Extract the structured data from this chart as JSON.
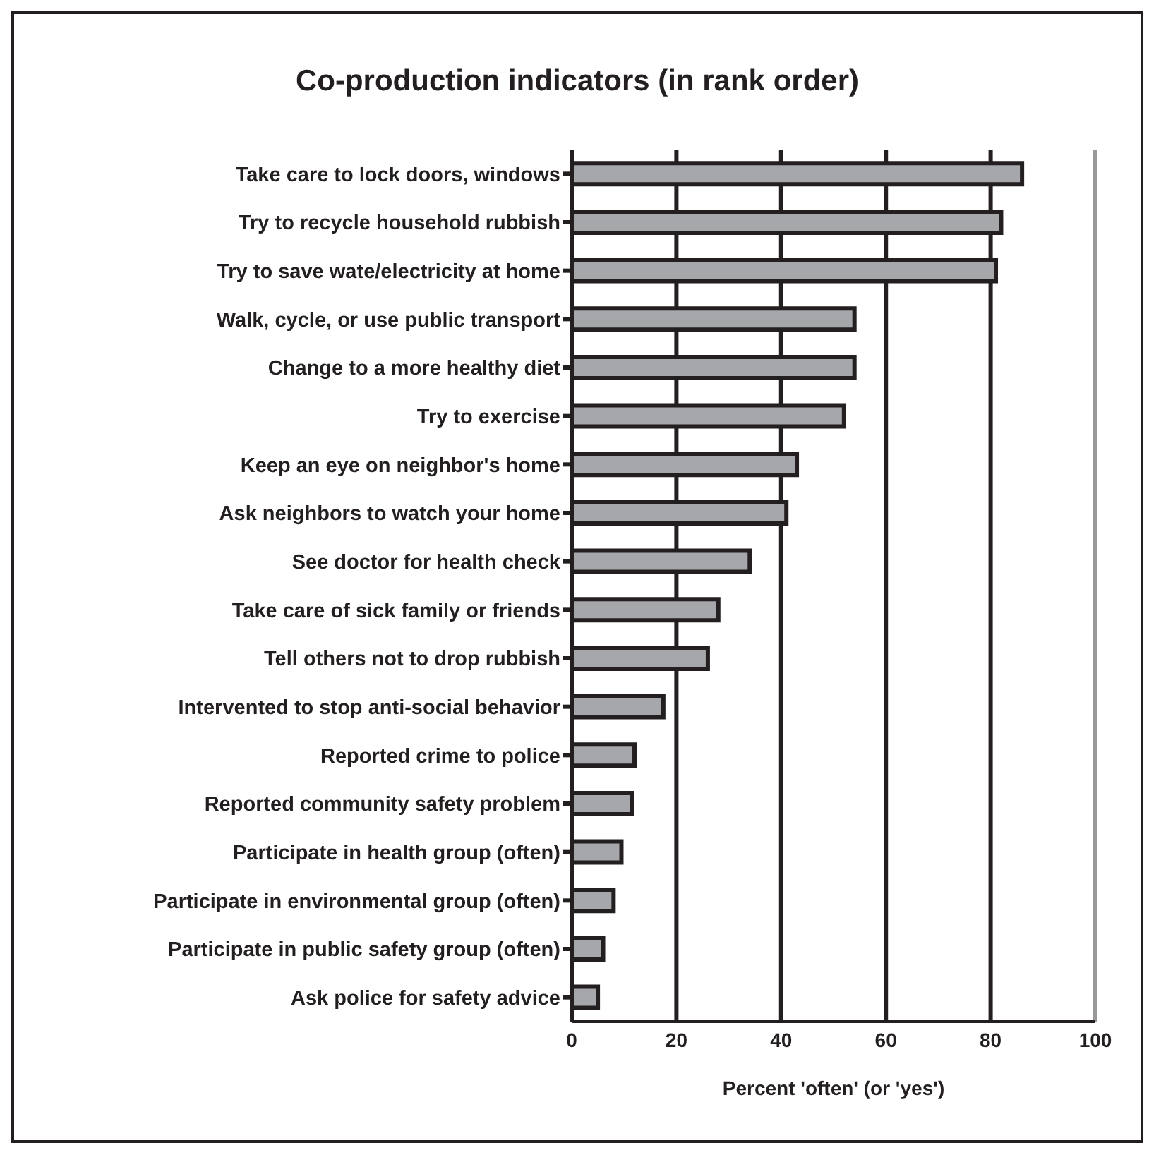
{
  "chart_data": {
    "type": "bar",
    "orientation": "horizontal",
    "title": "Co-production indicators (in rank order)",
    "xlabel": "Percent 'often' (or 'yes')",
    "categories": [
      "Take care to lock doors, windows",
      "Try to recycle household rubbish",
      "Try to save wate/electricity at home",
      "Walk, cycle, or use public transport",
      "Change to a more healthy diet",
      "Try to exercise",
      "Keep an eye on neighbor's home",
      "Ask neighbors to watch your home",
      "See doctor for health check",
      "Take care of sick family or friends",
      "Tell others not to drop rubbish",
      "Intervented to stop anti-social behavior",
      "Reported crime to police",
      "Reported community safety problem",
      "Participate in health group (often)",
      "Participate in environmental group (often)",
      "Participate in public safety group (often)",
      "Ask police for safety advice"
    ],
    "values": [
      86,
      82,
      81,
      54,
      54,
      52,
      43,
      41,
      34,
      28,
      26,
      17.5,
      12,
      11.5,
      9.5,
      8,
      6,
      5
    ],
    "color": "#a6a7ab",
    "xlim": [
      0,
      100
    ],
    "xticks": [
      0,
      20,
      40,
      60,
      80,
      100
    ],
    "grid": "x"
  }
}
